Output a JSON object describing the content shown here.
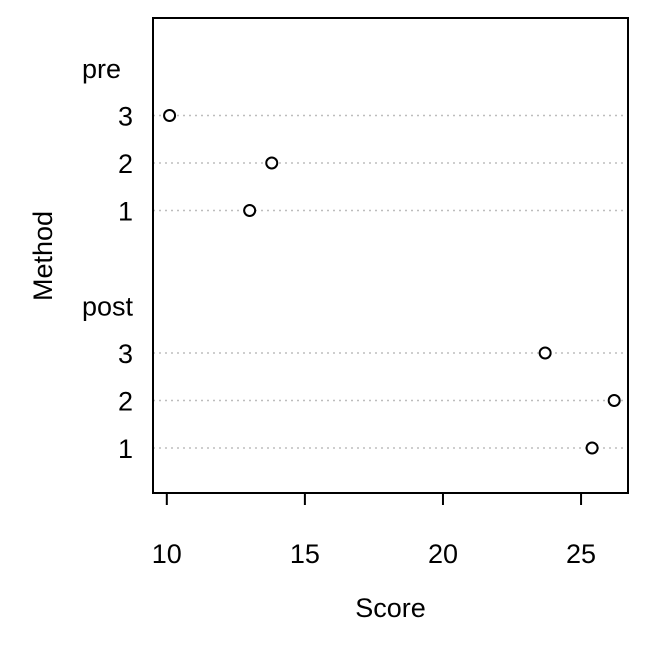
{
  "chart_data": {
    "type": "scatter",
    "title": "",
    "xlabel": "Score",
    "ylabel": "Method",
    "xlim": [
      9.5,
      26.7
    ],
    "x_ticks": [
      10,
      15,
      20,
      25
    ],
    "grid": "dotted horizontal lines at each row",
    "marker": "open circle",
    "groups": [
      {
        "label": "pre",
        "points": [
          {
            "label": "3",
            "x": 10.1
          },
          {
            "label": "2",
            "x": 13.8
          },
          {
            "label": "1",
            "x": 13.0
          }
        ]
      },
      {
        "label": "post",
        "points": [
          {
            "label": "3",
            "x": 23.7
          },
          {
            "label": "2",
            "x": 26.2
          },
          {
            "label": "1",
            "x": 25.4
          }
        ]
      }
    ]
  }
}
